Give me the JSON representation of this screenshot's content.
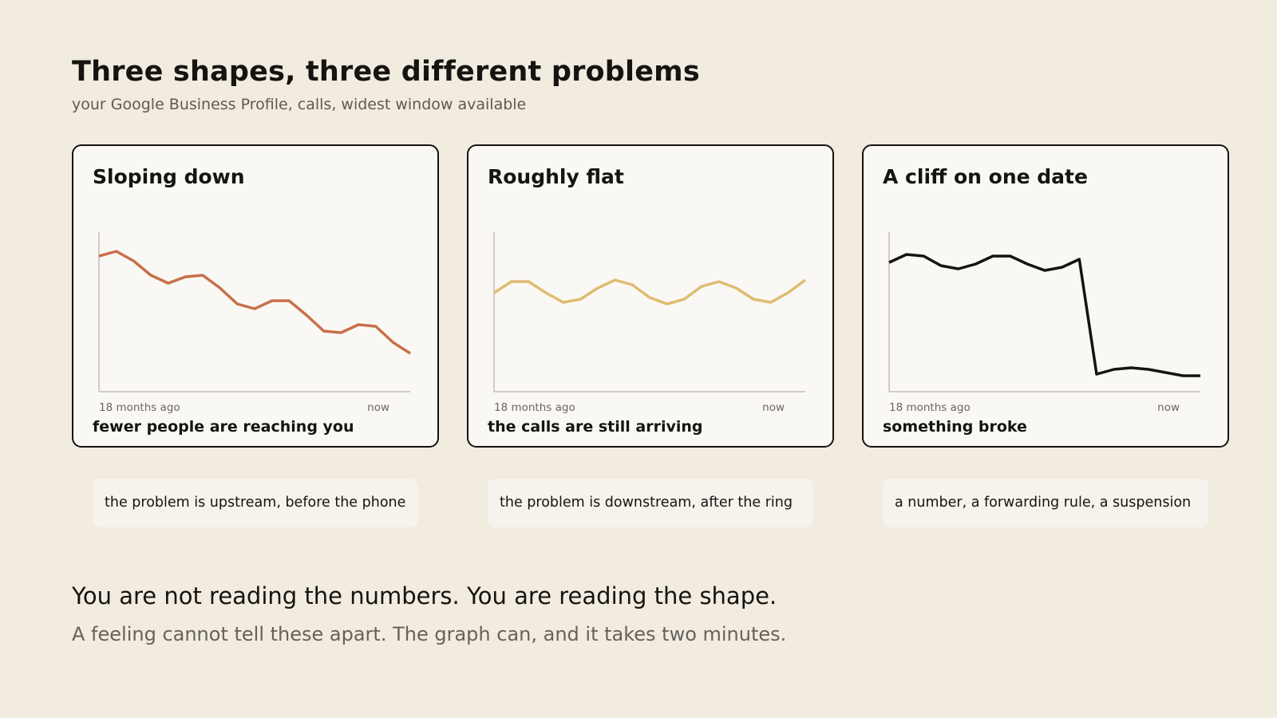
{
  "header": {
    "title": "Three shapes, three different problems",
    "subtitle": "your Google Business Profile, calls, widest window available"
  },
  "chart_data": [
    {
      "type": "line",
      "title": "Sloping down",
      "x_start_label": "18 months ago",
      "x_end_label": "now",
      "caption": "fewer people are reaching you",
      "color": "#c8704a",
      "ylim": [
        0,
        100
      ],
      "values": [
        85,
        88,
        82,
        73,
        68,
        72,
        73,
        65,
        55,
        52,
        57,
        57,
        48,
        38,
        37,
        42,
        41,
        31,
        24
      ],
      "note": "the problem is upstream, before the phone"
    },
    {
      "type": "line",
      "title": "Roughly flat",
      "x_start_label": "18 months ago",
      "x_end_label": "now",
      "caption": "the calls are still arriving",
      "color": "#dfbc72",
      "ylim": [
        0,
        100
      ],
      "values": [
        62,
        69,
        69,
        62,
        56,
        58,
        65,
        70,
        67,
        59,
        55,
        58,
        66,
        69,
        65,
        58,
        56,
        62,
        70
      ],
      "note": "the problem is downstream, after the ring"
    },
    {
      "type": "line",
      "title": "A cliff on one date",
      "x_start_label": "18 months ago",
      "x_end_label": "now",
      "caption": "something broke",
      "color": "#161410",
      "ylim": [
        0,
        100
      ],
      "values": [
        81,
        86,
        85,
        79,
        77,
        80,
        85,
        85,
        80,
        76,
        78,
        83,
        11,
        14,
        15,
        14,
        12,
        10,
        10
      ],
      "note": "a number, a forwarding rule, a suspension"
    }
  ],
  "footer": {
    "headline": "You are not reading the numbers. You are reading the shape.",
    "subline": "A feeling cannot tell these apart. The graph can, and it takes two minutes."
  }
}
